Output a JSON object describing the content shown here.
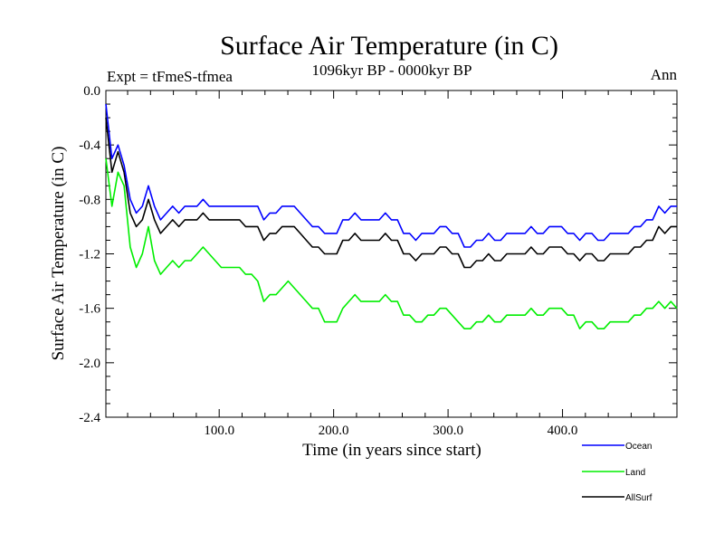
{
  "chart_data": {
    "type": "line",
    "title": "Surface Air Temperature (in C)",
    "subtitle": "1096kyr BP - 0000kyr BP",
    "left_label": "Expt = tFmeS-tfmea",
    "right_label": "Ann",
    "xlabel": "Time (in years since start)",
    "ylabel": "Surface Air Temperature (in C)",
    "xlim": [
      1,
      500
    ],
    "ylim": [
      -2.4,
      0.0
    ],
    "x_ticks": [
      100,
      200,
      300,
      400
    ],
    "x_tick_labels": [
      "100.0",
      "200.0",
      "300.0",
      "400.0"
    ],
    "y_ticks": [
      0.0,
      -0.4,
      -0.8,
      -1.2,
      -1.6,
      -2.0,
      -2.4
    ],
    "y_tick_labels": [
      "0.0",
      "-0.4",
      "-0.8",
      "-1.2",
      "-1.6",
      "-2.0",
      "-2.4"
    ],
    "legend_position": "bottom-right",
    "series": [
      {
        "name": "Ocean",
        "color": "#0000ff",
        "values": [
          -0.1,
          -0.5,
          -0.4,
          -0.55,
          -0.8,
          -0.9,
          -0.85,
          -0.7,
          -0.85,
          -0.95,
          -0.9,
          -0.85,
          -0.9,
          -0.85,
          -0.85,
          -0.85,
          -0.8,
          -0.85,
          -0.85,
          -0.85,
          -0.85,
          -0.85,
          -0.85,
          -0.85,
          -0.85,
          -0.85,
          -0.95,
          -0.9,
          -0.9,
          -0.85,
          -0.85,
          -0.85,
          -0.9,
          -0.95,
          -1.0,
          -1.0,
          -1.05,
          -1.05,
          -1.05,
          -0.95,
          -0.95,
          -0.9,
          -0.95,
          -0.95,
          -0.95,
          -0.95,
          -0.9,
          -0.95,
          -0.95,
          -1.05,
          -1.05,
          -1.1,
          -1.05,
          -1.05,
          -1.05,
          -1.0,
          -1.0,
          -1.05,
          -1.05,
          -1.15,
          -1.15,
          -1.1,
          -1.1,
          -1.05,
          -1.1,
          -1.1,
          -1.05,
          -1.05,
          -1.05,
          -1.05,
          -1.0,
          -1.05,
          -1.05,
          -1.0,
          -1.0,
          -1.0,
          -1.05,
          -1.05,
          -1.1,
          -1.05,
          -1.05,
          -1.1,
          -1.1,
          -1.05,
          -1.05,
          -1.05,
          -1.05,
          -1.0,
          -1.0,
          -0.95,
          -0.95,
          -0.85,
          -0.9,
          -0.85,
          -0.85
        ]
      },
      {
        "name": "Land",
        "color": "#00ee00",
        "values": [
          -0.5,
          -0.85,
          -0.6,
          -0.7,
          -1.15,
          -1.3,
          -1.2,
          -1.0,
          -1.25,
          -1.35,
          -1.3,
          -1.25,
          -1.3,
          -1.25,
          -1.25,
          -1.2,
          -1.15,
          -1.2,
          -1.25,
          -1.3,
          -1.3,
          -1.3,
          -1.3,
          -1.35,
          -1.35,
          -1.4,
          -1.55,
          -1.5,
          -1.5,
          -1.45,
          -1.4,
          -1.45,
          -1.5,
          -1.55,
          -1.6,
          -1.6,
          -1.7,
          -1.7,
          -1.7,
          -1.6,
          -1.55,
          -1.5,
          -1.55,
          -1.55,
          -1.55,
          -1.55,
          -1.5,
          -1.55,
          -1.55,
          -1.65,
          -1.65,
          -1.7,
          -1.7,
          -1.65,
          -1.65,
          -1.6,
          -1.6,
          -1.65,
          -1.7,
          -1.75,
          -1.75,
          -1.7,
          -1.7,
          -1.65,
          -1.7,
          -1.7,
          -1.65,
          -1.65,
          -1.65,
          -1.65,
          -1.6,
          -1.65,
          -1.65,
          -1.6,
          -1.6,
          -1.6,
          -1.65,
          -1.65,
          -1.75,
          -1.7,
          -1.7,
          -1.75,
          -1.75,
          -1.7,
          -1.7,
          -1.7,
          -1.7,
          -1.65,
          -1.65,
          -1.6,
          -1.6,
          -1.55,
          -1.6,
          -1.55,
          -1.6
        ]
      },
      {
        "name": "AllSurf",
        "color": "#000000",
        "values": [
          -0.2,
          -0.6,
          -0.45,
          -0.6,
          -0.9,
          -1.0,
          -0.95,
          -0.8,
          -0.95,
          -1.05,
          -1.0,
          -0.95,
          -1.0,
          -0.95,
          -0.95,
          -0.95,
          -0.9,
          -0.95,
          -0.95,
          -0.95,
          -0.95,
          -0.95,
          -0.95,
          -1.0,
          -1.0,
          -1.0,
          -1.1,
          -1.05,
          -1.05,
          -1.0,
          -1.0,
          -1.0,
          -1.05,
          -1.1,
          -1.15,
          -1.15,
          -1.2,
          -1.2,
          -1.2,
          -1.1,
          -1.1,
          -1.05,
          -1.1,
          -1.1,
          -1.1,
          -1.1,
          -1.05,
          -1.1,
          -1.1,
          -1.2,
          -1.2,
          -1.25,
          -1.2,
          -1.2,
          -1.2,
          -1.15,
          -1.15,
          -1.2,
          -1.2,
          -1.3,
          -1.3,
          -1.25,
          -1.25,
          -1.2,
          -1.25,
          -1.25,
          -1.2,
          -1.2,
          -1.2,
          -1.2,
          -1.15,
          -1.2,
          -1.2,
          -1.15,
          -1.15,
          -1.15,
          -1.2,
          -1.2,
          -1.25,
          -1.2,
          -1.2,
          -1.25,
          -1.25,
          -1.2,
          -1.2,
          -1.2,
          -1.2,
          -1.15,
          -1.15,
          -1.1,
          -1.1,
          -1.0,
          -1.05,
          -1.0,
          -1.0
        ]
      }
    ]
  }
}
